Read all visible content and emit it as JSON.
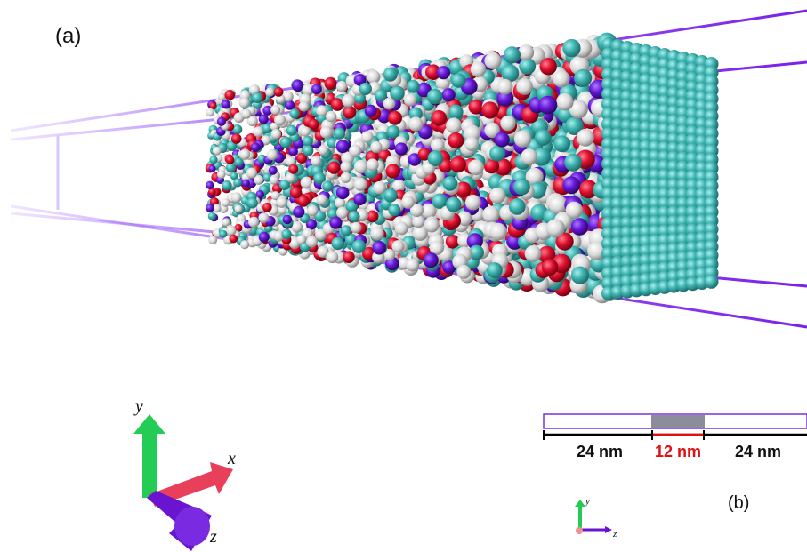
{
  "panel_a": {
    "label": "(a)",
    "axes": {
      "x": "x",
      "y": "y",
      "z": "z"
    }
  },
  "panel_b": {
    "label": "(b)",
    "segments": [
      "24 nm",
      "12 nm",
      "24 nm"
    ],
    "axes": {
      "y": "y",
      "z": "z"
    }
  }
}
